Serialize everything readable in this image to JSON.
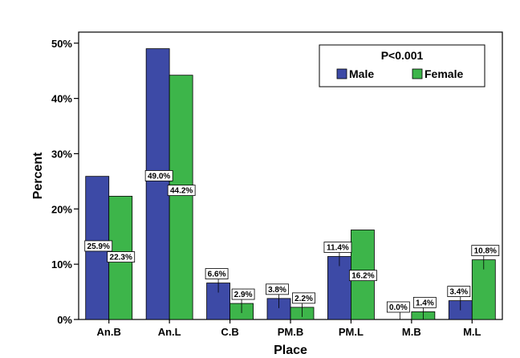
{
  "chart_data": {
    "type": "bar",
    "title": "",
    "xlabel": "Place",
    "ylabel": "Percent",
    "categories": [
      "An.B",
      "An.L",
      "C.B",
      "PM.B",
      "PM.L",
      "M.B",
      "M.L"
    ],
    "series": [
      {
        "name": "Male",
        "values": [
          25.9,
          49.0,
          6.6,
          3.8,
          11.4,
          0.0,
          3.4
        ],
        "labels": [
          "25.9%",
          "49.0%",
          "6.6%",
          "3.8%",
          "11.4%",
          "0.0%",
          "3.4%"
        ],
        "color": "#3d4aa6"
      },
      {
        "name": "Female",
        "values": [
          22.3,
          44.2,
          2.9,
          2.2,
          16.2,
          1.4,
          10.8
        ],
        "labels": [
          "22.3%",
          "44.2%",
          "2.9%",
          "2.2%",
          "16.2%",
          "1.4%",
          "10.8%"
        ],
        "color": "#3db54a"
      }
    ],
    "ylim": [
      0,
      52
    ],
    "yticks": [
      0,
      10,
      20,
      30,
      40,
      50
    ],
    "ytick_labels": [
      "0%",
      "10%",
      "20%",
      "30%",
      "40%",
      "50%"
    ],
    "legend": {
      "title": "P<0.001",
      "position": "top-right"
    },
    "grid": false
  }
}
